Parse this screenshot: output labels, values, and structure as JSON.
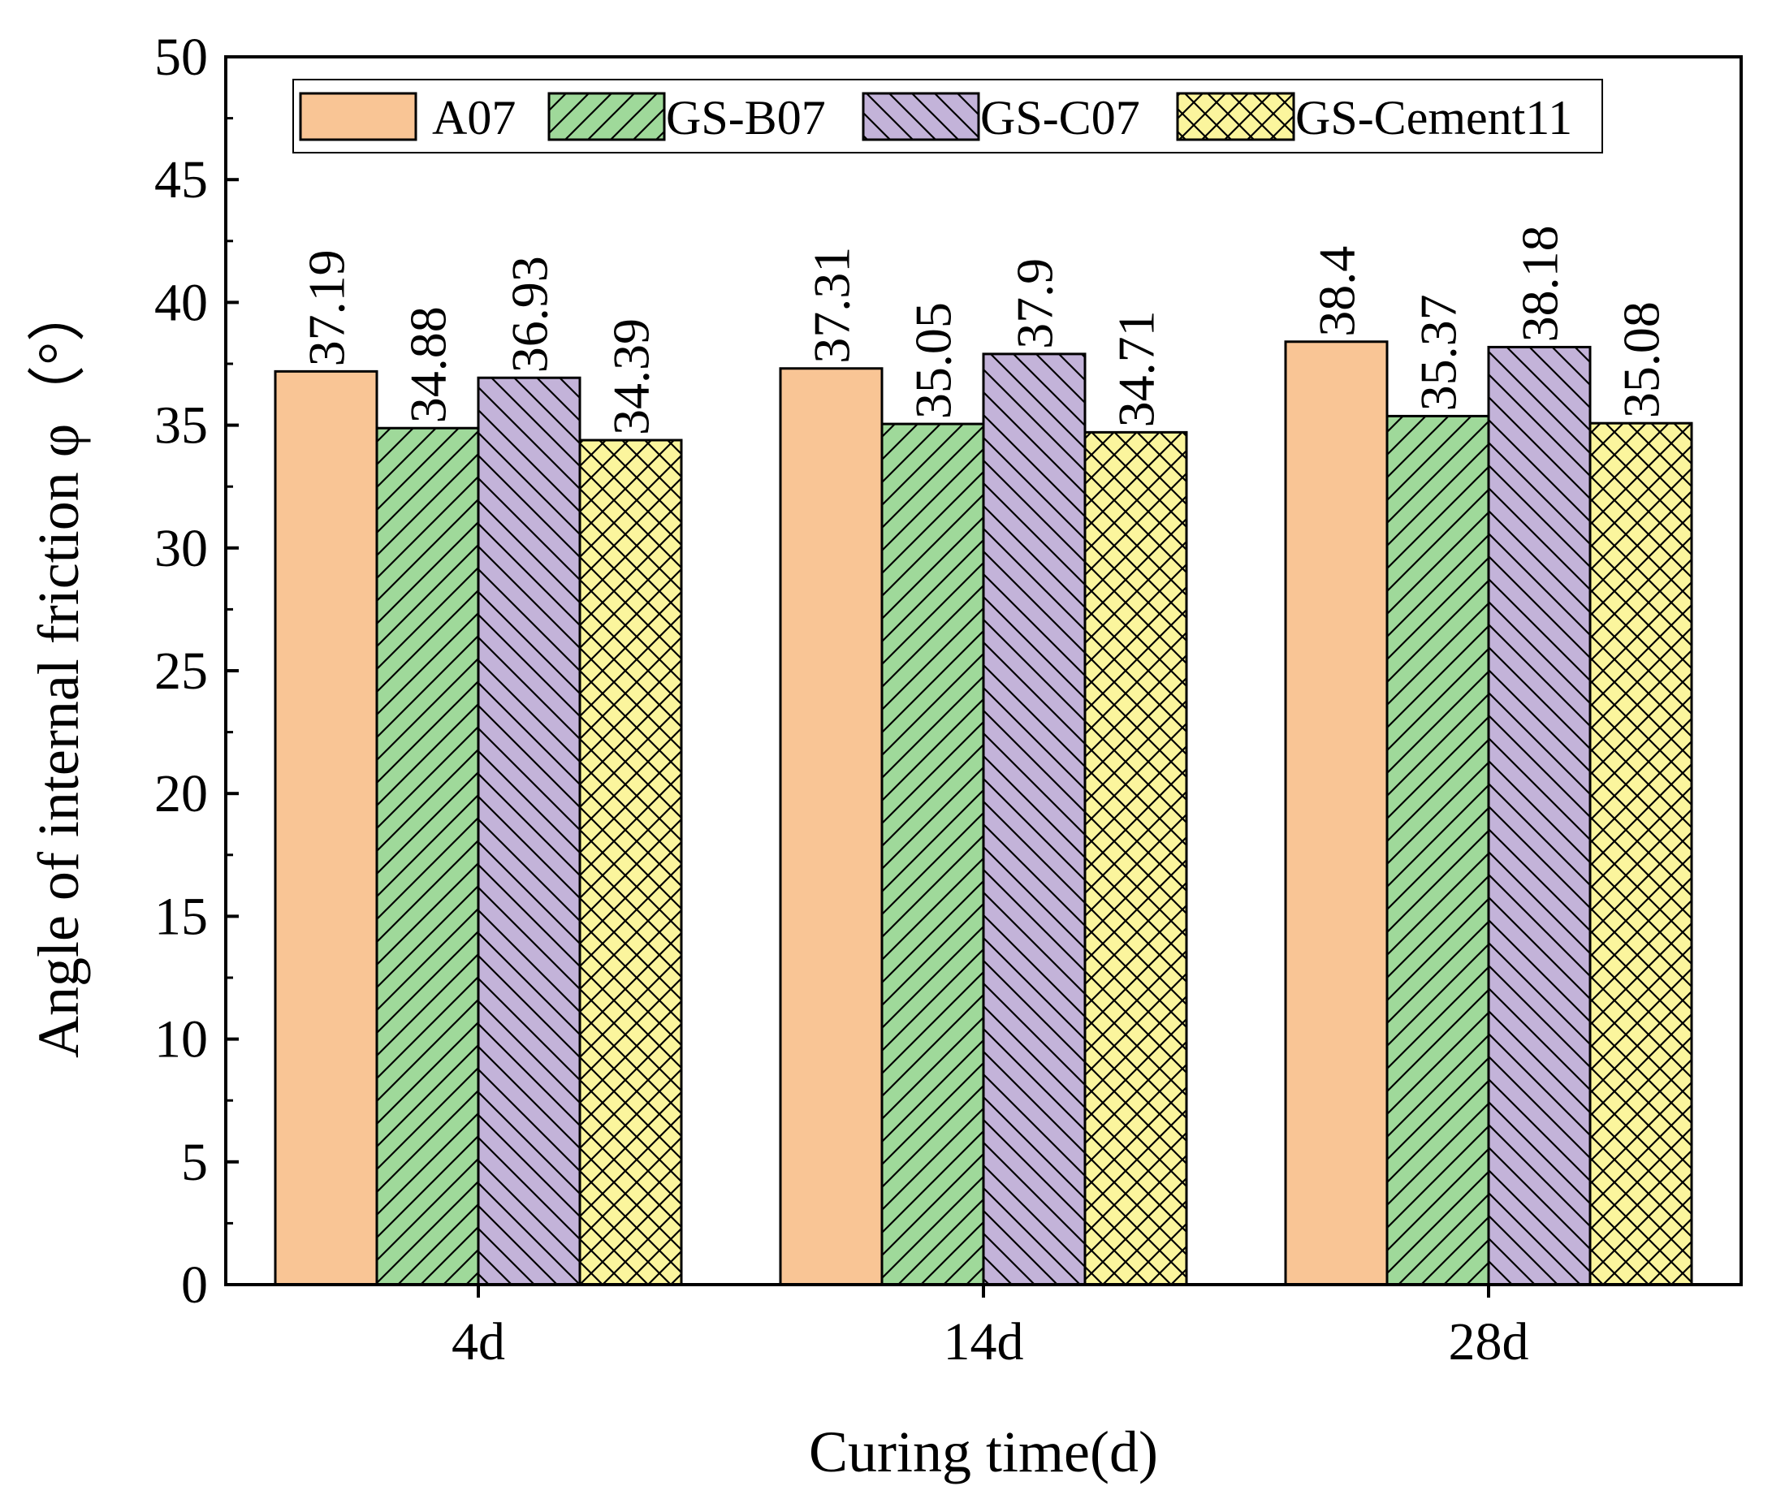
{
  "chart_data": {
    "type": "bar",
    "title": "",
    "xlabel": "Curing time(d)",
    "ylabel": "Angle of internal friction φ（°）",
    "ylim": [
      0,
      50
    ],
    "yticks": [
      "0",
      "5",
      "10",
      "15",
      "20",
      "25",
      "30",
      "35",
      "40",
      "45",
      "50"
    ],
    "categories": [
      "4d",
      "14d",
      "28d"
    ],
    "legend_position": "top",
    "series": [
      {
        "name": "A07",
        "color": "#f9c595",
        "pattern": "none",
        "values": [
          37.19,
          37.31,
          38.4
        ],
        "labels": [
          "37.19",
          "37.31",
          "38.4"
        ]
      },
      {
        "name": "GS-B07",
        "color": "#9fd99a",
        "pattern": "diagonal-up",
        "values": [
          34.88,
          35.05,
          35.37
        ],
        "labels": [
          "34.88",
          "35.05",
          "35.37"
        ]
      },
      {
        "name": "GS-C07",
        "color": "#c3b3d9",
        "pattern": "diagonal-down",
        "values": [
          36.93,
          37.9,
          38.18
        ],
        "labels": [
          "36.93",
          "37.9",
          "38.18"
        ]
      },
      {
        "name": "GS-Cement11",
        "color": "#fbf59d",
        "pattern": "crosshatch",
        "values": [
          34.39,
          34.71,
          35.08
        ],
        "labels": [
          "34.39",
          "34.71",
          "35.08"
        ]
      }
    ]
  }
}
